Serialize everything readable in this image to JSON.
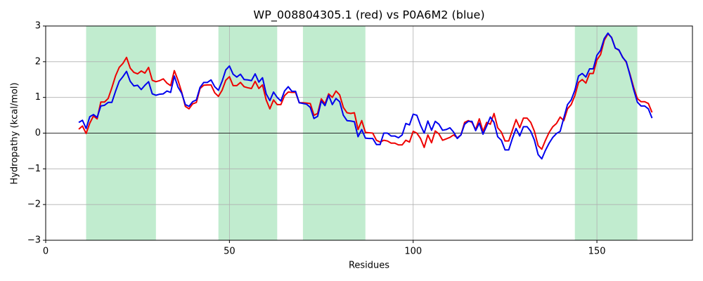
{
  "chart_data": {
    "type": "line",
    "title": "WP_008804305.1 (red) vs P0A6M2 (blue)",
    "x_label": "Residues",
    "y_label": "Hydropathy (kcal/mol)",
    "xlim": [
      0,
      176
    ],
    "ylim": [
      -3,
      3
    ],
    "xticks": [
      0,
      50,
      100,
      150
    ],
    "yticks": [
      {
        "value": -3,
        "label": "−3"
      },
      {
        "value": -2,
        "label": "−2"
      },
      {
        "value": -1,
        "label": "−1"
      },
      0,
      1,
      2,
      3
    ],
    "grid": true,
    "hline": 0,
    "span_color": "#c1eccf",
    "spans": [
      [
        11,
        30
      ],
      [
        47,
        63
      ],
      [
        70,
        87
      ],
      [
        144,
        161
      ]
    ],
    "x": [
      9,
      10,
      11,
      12,
      13,
      14,
      15,
      16,
      17,
      18,
      19,
      20,
      21,
      22,
      23,
      24,
      25,
      26,
      27,
      28,
      29,
      30,
      31,
      32,
      33,
      34,
      35,
      36,
      37,
      38,
      39,
      40,
      41,
      42,
      43,
      44,
      45,
      46,
      47,
      48,
      49,
      50,
      51,
      52,
      53,
      54,
      55,
      56,
      57,
      58,
      59,
      60,
      61,
      62,
      63,
      64,
      65,
      66,
      67,
      68,
      69,
      70,
      71,
      72,
      73,
      74,
      75,
      76,
      77,
      78,
      79,
      80,
      81,
      82,
      83,
      84,
      85,
      86,
      87,
      88,
      89,
      90,
      91,
      92,
      93,
      94,
      95,
      96,
      97,
      98,
      99,
      100,
      101,
      102,
      103,
      104,
      105,
      106,
      107,
      108,
      109,
      110,
      111,
      112,
      113,
      114,
      115,
      116,
      117,
      118,
      119,
      120,
      121,
      122,
      123,
      124,
      125,
      126,
      127,
      128,
      129,
      130,
      131,
      132,
      133,
      134,
      135,
      136,
      137,
      138,
      139,
      140,
      141,
      142,
      143,
      144,
      145,
      146,
      147,
      148,
      149,
      150,
      151,
      152,
      153,
      154,
      155,
      156,
      157,
      158,
      159,
      160,
      161,
      162,
      163,
      164,
      165
    ],
    "series": [
      {
        "color": "#ee0000",
        "values": [
          0.11,
          0.2,
          -0.01,
          0.28,
          0.48,
          0.4,
          0.87,
          0.87,
          0.97,
          1.27,
          1.6,
          1.84,
          1.95,
          2.12,
          1.82,
          1.7,
          1.66,
          1.74,
          1.68,
          1.84,
          1.48,
          1.44,
          1.47,
          1.52,
          1.4,
          1.33,
          1.75,
          1.48,
          1.15,
          0.75,
          0.68,
          0.82,
          0.86,
          1.25,
          1.34,
          1.35,
          1.35,
          1.13,
          1.03,
          1.2,
          1.48,
          1.58,
          1.33,
          1.33,
          1.42,
          1.3,
          1.27,
          1.25,
          1.45,
          1.25,
          1.35,
          0.93,
          0.68,
          0.93,
          0.8,
          0.8,
          1.05,
          1.15,
          1.14,
          1.14,
          0.85,
          0.85,
          0.84,
          0.83,
          0.5,
          0.55,
          0.96,
          0.82,
          1.1,
          1.0,
          1.18,
          1.07,
          0.72,
          0.57,
          0.55,
          0.57,
          0.1,
          0.35,
          0.02,
          0.01,
          0,
          -0.2,
          -0.25,
          -0.2,
          -0.22,
          -0.28,
          -0.28,
          -0.33,
          -0.33,
          -0.2,
          -0.25,
          0.05,
          0,
          -0.15,
          -0.4,
          -0.05,
          -0.27,
          0.06,
          -0.02,
          -0.2,
          -0.16,
          -0.12,
          -0.05,
          -0.13,
          -0.05,
          0.3,
          0.35,
          0.3,
          0.1,
          0.4,
          0.05,
          0.3,
          0.25,
          0.55,
          0.15,
          0.03,
          -0.22,
          -0.22,
          0.08,
          0.38,
          0.15,
          0.42,
          0.42,
          0.3,
          0.05,
          -0.35,
          -0.45,
          -0.2,
          0.02,
          0.18,
          0.27,
          0.45,
          0.35,
          0.68,
          0.8,
          1.05,
          1.42,
          1.5,
          1.4,
          1.67,
          1.67,
          2.05,
          2.2,
          2.6,
          2.78,
          2.68,
          2.38,
          2.32,
          2.13,
          1.98,
          1.65,
          1.28,
          0.97,
          0.88,
          0.88,
          0.83,
          0.58
        ]
      },
      {
        "color": "#0000ee",
        "values": [
          0.3,
          0.36,
          0.13,
          0.46,
          0.52,
          0.44,
          0.76,
          0.78,
          0.86,
          0.86,
          1.17,
          1.45,
          1.58,
          1.73,
          1.45,
          1.32,
          1.34,
          1.22,
          1.34,
          1.44,
          1.1,
          1.06,
          1.09,
          1.1,
          1.18,
          1.14,
          1.6,
          1.29,
          1.12,
          0.8,
          0.75,
          0.88,
          0.93,
          1.28,
          1.42,
          1.42,
          1.49,
          1.3,
          1.2,
          1.45,
          1.77,
          1.88,
          1.65,
          1.57,
          1.65,
          1.5,
          1.49,
          1.47,
          1.66,
          1.43,
          1.55,
          1.1,
          0.91,
          1.15,
          1.0,
          0.9,
          1.18,
          1.3,
          1.17,
          1.17,
          0.85,
          0.83,
          0.81,
          0.72,
          0.41,
          0.47,
          0.9,
          0.77,
          1.06,
          0.8,
          0.97,
          0.88,
          0.5,
          0.35,
          0.34,
          0.32,
          -0.1,
          0.1,
          -0.14,
          -0.15,
          -0.15,
          -0.32,
          -0.32,
          0,
          0,
          -0.08,
          -0.08,
          -0.13,
          -0.05,
          0.27,
          0.23,
          0.53,
          0.5,
          0.22,
          0,
          0.34,
          0.08,
          0.33,
          0.25,
          0.08,
          0.1,
          0.15,
          0.03,
          -0.15,
          -0.05,
          0.25,
          0.33,
          0.33,
          0.07,
          0.28,
          -0.03,
          0.2,
          0.45,
          0.3,
          -0.1,
          -0.2,
          -0.47,
          -0.47,
          -0.15,
          0.13,
          -0.08,
          0.18,
          0.18,
          0.05,
          -0.2,
          -0.6,
          -0.72,
          -0.48,
          -0.28,
          -0.12,
          -0.01,
          0.05,
          0.43,
          0.8,
          0.93,
          1.2,
          1.6,
          1.67,
          1.57,
          1.8,
          1.8,
          2.18,
          2.32,
          2.65,
          2.8,
          2.67,
          2.38,
          2.33,
          2.12,
          2.0,
          1.62,
          1.22,
          0.87,
          0.76,
          0.76,
          0.68,
          0.42
        ]
      }
    ]
  }
}
